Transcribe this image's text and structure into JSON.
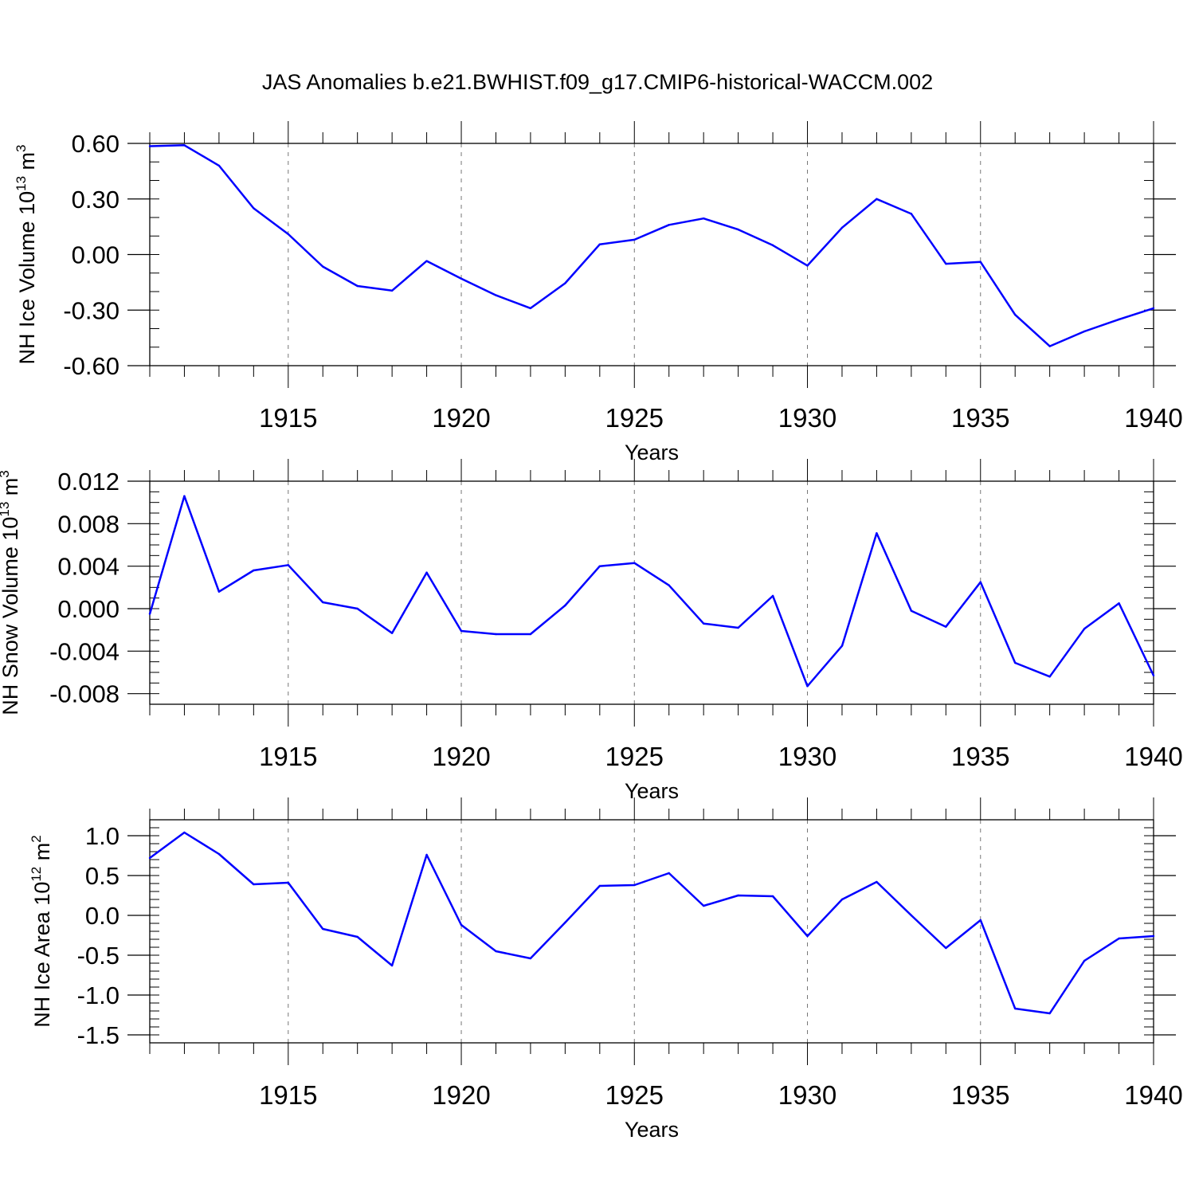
{
  "title": "JAS Anomalies b.e21.BWHIST.f09_g17.CMIP6-historical-WACCM.002",
  "colors": {
    "line": "#0000ff",
    "axis": "#000000",
    "grid": "#777777"
  },
  "chart_data": [
    {
      "type": "line",
      "name": "ice-volume",
      "ylabel": "NH Ice Volume 10",
      "ylabel_sup": "13",
      "ylabel_unit": "m",
      "ylabel_unit_sup": "3",
      "xlabel": "Years",
      "xlim": [
        1911,
        1940
      ],
      "ylim": [
        -0.6,
        0.6
      ],
      "yticks": [
        0.6,
        0.3,
        0.0,
        -0.3,
        -0.6
      ],
      "ytick_labels": [
        "0.60",
        "0.30",
        "0.00",
        "-0.30",
        "-0.60"
      ],
      "y_minor_step": 0.1,
      "xticks": [
        1915,
        1920,
        1925,
        1930,
        1935,
        1940
      ],
      "xtick_labels": [
        "1915",
        "1920",
        "1925",
        "1930",
        "1935",
        "1940"
      ],
      "x": [
        1911,
        1912,
        1913,
        1914,
        1915,
        1916,
        1917,
        1918,
        1919,
        1920,
        1921,
        1922,
        1923,
        1924,
        1925,
        1926,
        1927,
        1928,
        1929,
        1930,
        1931,
        1932,
        1933,
        1934,
        1935,
        1936,
        1937,
        1938,
        1939,
        1940
      ],
      "series": [
        {
          "name": "NH Ice Volume",
          "values": [
            0.585,
            0.59,
            0.48,
            0.25,
            0.11,
            -0.065,
            -0.17,
            -0.195,
            -0.035,
            -0.13,
            -0.22,
            -0.29,
            -0.155,
            0.055,
            0.08,
            0.16,
            0.195,
            0.135,
            0.05,
            -0.06,
            0.145,
            0.3,
            0.22,
            -0.05,
            -0.04,
            -0.325,
            -0.495,
            -0.415,
            -0.35,
            -0.29
          ]
        }
      ]
    },
    {
      "type": "line",
      "name": "snow-volume",
      "ylabel": "NH Snow Volume 10",
      "ylabel_sup": "13",
      "ylabel_unit": "m",
      "ylabel_unit_sup": "3",
      "xlabel": "Years",
      "xlim": [
        1911,
        1940
      ],
      "ylim": [
        -0.009,
        0.012
      ],
      "yticks": [
        0.012,
        0.008,
        0.004,
        0.0,
        -0.004,
        -0.008
      ],
      "ytick_labels": [
        "0.012",
        "0.008",
        "0.004",
        "0.000",
        "-0.004",
        "-0.008"
      ],
      "y_minor_step": 0.001,
      "xticks": [
        1915,
        1920,
        1925,
        1930,
        1935,
        1940
      ],
      "xtick_labels": [
        "1915",
        "1920",
        "1925",
        "1930",
        "1935",
        "1940"
      ],
      "x": [
        1911,
        1912,
        1913,
        1914,
        1915,
        1916,
        1917,
        1918,
        1919,
        1920,
        1921,
        1922,
        1923,
        1924,
        1925,
        1926,
        1927,
        1928,
        1929,
        1930,
        1931,
        1932,
        1933,
        1934,
        1935,
        1936,
        1937,
        1938,
        1939,
        1940
      ],
      "series": [
        {
          "name": "NH Snow Volume",
          "values": [
            -0.0005,
            0.0106,
            0.0016,
            0.0036,
            0.0041,
            0.0006,
            0.0,
            -0.0023,
            0.0034,
            -0.0021,
            -0.0024,
            -0.0024,
            0.0003,
            0.004,
            0.0043,
            0.0022,
            -0.0014,
            -0.0018,
            0.0012,
            -0.0073,
            -0.0035,
            0.0071,
            -0.0002,
            -0.0017,
            0.0025,
            -0.0051,
            -0.0064,
            -0.0019,
            0.0005,
            -0.0063
          ]
        }
      ]
    },
    {
      "type": "line",
      "name": "ice-area",
      "ylabel": "NH Ice Area 10",
      "ylabel_sup": "12",
      "ylabel_unit": "m",
      "ylabel_unit_sup": "2",
      "xlabel": "Years",
      "xlim": [
        1911,
        1940
      ],
      "ylim": [
        -1.6,
        1.2
      ],
      "yticks": [
        1.0,
        0.5,
        0.0,
        -0.5,
        -1.0,
        -1.5
      ],
      "ytick_labels": [
        "1.0",
        "0.5",
        "0.0",
        "-0.5",
        "-1.0",
        "-1.5"
      ],
      "y_minor_step": 0.1,
      "xticks": [
        1915,
        1920,
        1925,
        1930,
        1935,
        1940
      ],
      "xtick_labels": [
        "1915",
        "1920",
        "1925",
        "1930",
        "1935",
        "1940"
      ],
      "x": [
        1911,
        1912,
        1913,
        1914,
        1915,
        1916,
        1917,
        1918,
        1919,
        1920,
        1921,
        1922,
        1923,
        1924,
        1925,
        1926,
        1927,
        1928,
        1929,
        1930,
        1931,
        1932,
        1933,
        1934,
        1935,
        1936,
        1937,
        1938,
        1939,
        1940
      ],
      "series": [
        {
          "name": "NH Ice Area",
          "values": [
            0.72,
            1.04,
            0.77,
            0.39,
            0.41,
            -0.17,
            -0.27,
            -0.63,
            0.76,
            -0.12,
            -0.45,
            -0.54,
            -0.09,
            0.37,
            0.38,
            0.53,
            0.12,
            0.25,
            0.24,
            -0.26,
            0.2,
            0.42,
            0.0,
            -0.41,
            -0.06,
            -1.17,
            -1.23,
            -0.57,
            -0.29,
            -0.26
          ]
        }
      ]
    }
  ]
}
